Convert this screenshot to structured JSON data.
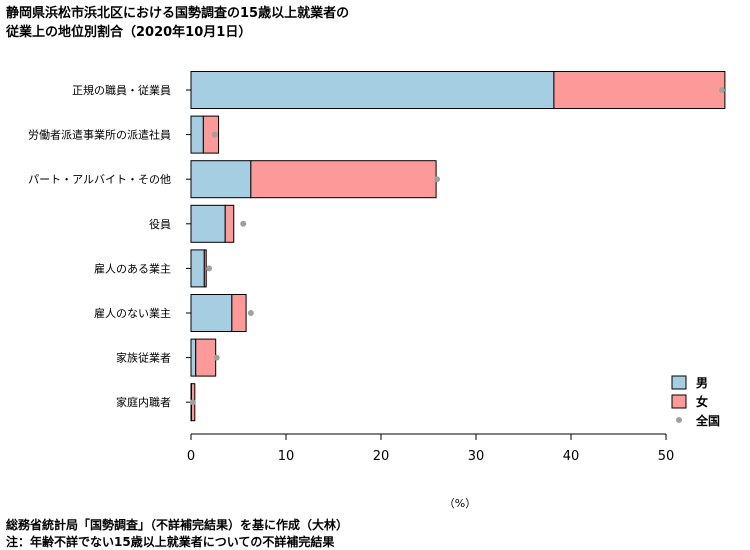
{
  "title_line1": "静岡県浜松市浜北区における国勢調査の15歳以上就業者の",
  "title_line2": "従業上の地位別割合（2020年10月1日）",
  "source": "総務省統計局「国勢調査」（不詳補完結果）を基に作成（大林）",
  "note": "注：年齢不詳でない15歳以上就業者についての不詳補完結果",
  "chart_data": {
    "type": "bar",
    "orientation": "horizontal",
    "stacked": true,
    "categories": [
      "正規の職員・従業員",
      "労働者派遣事業所の派遣社員",
      "パート・アルバイト・その他",
      "役員",
      "雇人のある業主",
      "雇人のない業主",
      "家族従業者",
      "家庭内職者"
    ],
    "series": [
      {
        "name": "男",
        "color": "#a6cee3",
        "values": [
          38.2,
          1.3,
          6.3,
          3.6,
          1.4,
          4.3,
          0.5,
          0.05
        ]
      },
      {
        "name": "女",
        "color": "#fb9a99",
        "values": [
          18.0,
          1.6,
          19.5,
          0.9,
          0.2,
          1.5,
          2.1,
          0.35
        ]
      }
    ],
    "points": {
      "name": "全国",
      "color": "#a0a0a0",
      "values": [
        55.9,
        2.5,
        25.9,
        5.5,
        1.9,
        6.3,
        2.7,
        0.2
      ]
    },
    "x_ticks": [
      0,
      10,
      20,
      30,
      40,
      50
    ],
    "xlim": [
      0,
      56
    ],
    "xlabel": "（%）",
    "legend_position": "right",
    "grid": false
  }
}
